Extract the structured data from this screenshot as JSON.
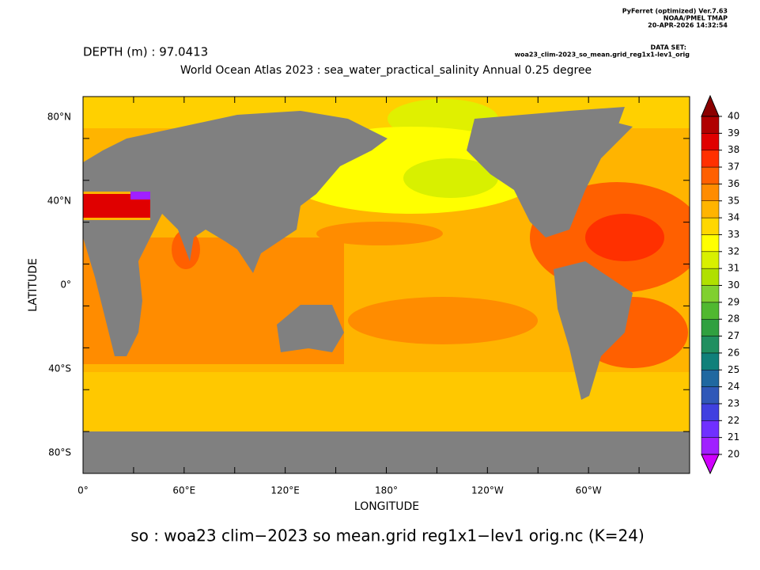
{
  "header": {
    "software": "PyFerret (optimized) Ver.7.63",
    "org": "NOAA/PMEL TMAP",
    "timestamp": "20-APR-2026 14:32:54",
    "dataset_label": "DATA SET:",
    "dataset": "woa23_clim-2023_so_mean.grid_reg1x1-lev1_orig"
  },
  "depth_label": "DEPTH (m) : 97.0413",
  "title": "World Ocean Atlas 2023 : sea_water_practical_salinity Annual  0.25 degree",
  "map": {
    "xlabel": "LONGITUDE",
    "ylabel": "LATITUDE",
    "xticks": [
      "0°",
      "60°E",
      "120°E",
      "180°",
      "120°W",
      "60°W"
    ],
    "yticks": [
      "80°N",
      "40°N",
      "0°",
      "40°S",
      "80°S"
    ]
  },
  "colorbar": {
    "levels": [
      20,
      21,
      22,
      23,
      24,
      25,
      26,
      27,
      28,
      29,
      30,
      31,
      32,
      33,
      34,
      35,
      36,
      37,
      38,
      39,
      40
    ],
    "under_color": "#d000ff",
    "over_color": "#8b0000",
    "colors": [
      "#a020ff",
      "#7030ff",
      "#4040e0",
      "#3058b8",
      "#2068a0",
      "#10807a",
      "#208f60",
      "#30a040",
      "#50b830",
      "#80d030",
      "#b0e000",
      "#d8f000",
      "#ffff00",
      "#ffd700",
      "#ffb400",
      "#ff8c00",
      "#ff6000",
      "#ff3000",
      "#e00000",
      "#b00000"
    ]
  },
  "footer": "so : woa23 clim−2023 so mean.grid reg1x1−lev1 orig.nc (K=24)"
}
